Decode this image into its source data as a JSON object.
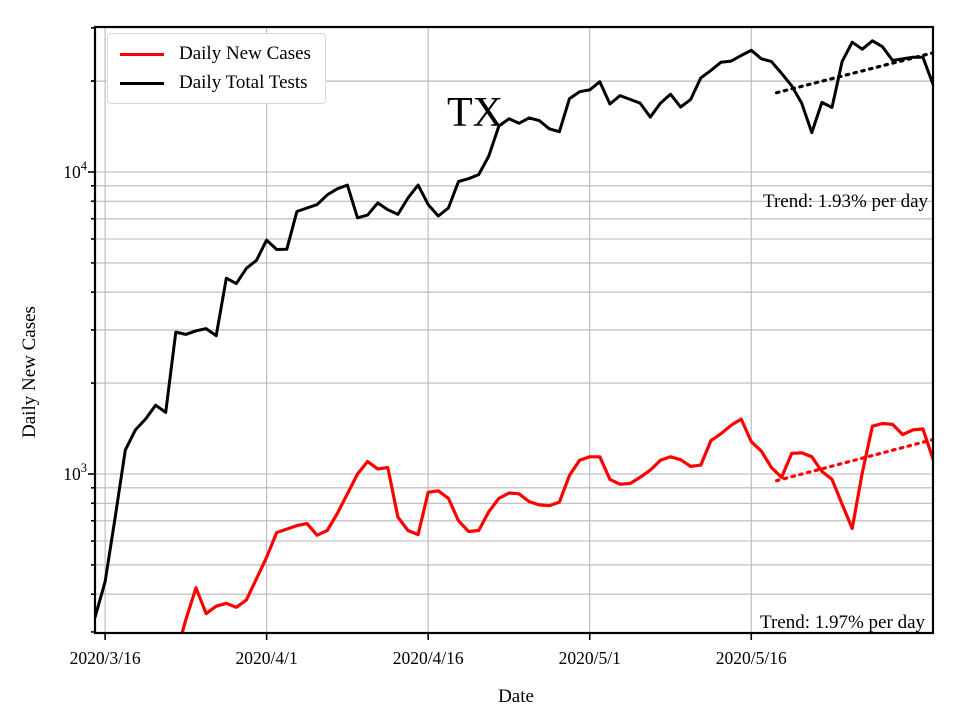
{
  "figure": {
    "background": "#ffffff"
  },
  "chart_data": {
    "type": "line",
    "title": "",
    "region_label": "TX",
    "xlabel": "Date",
    "ylabel": "Daily New Cases",
    "y_scale": "log",
    "ylim": [
      298,
      30000
    ],
    "grid": true,
    "grid_color": "#b9b9b9",
    "n_points": 84,
    "x_tick_indices": [
      1,
      17,
      33,
      49,
      65
    ],
    "x_tick_labels": [
      "2020/3/16",
      "2020/4/1",
      "2020/4/16",
      "2020/5/1",
      "2020/5/16"
    ],
    "y_major_ticks": [
      {
        "value": 1000,
        "base": "10",
        "exp": "3"
      },
      {
        "value": 10000,
        "base": "10",
        "exp": "4"
      }
    ],
    "series": [
      {
        "name": "Daily New Cases",
        "color": "#ff0000",
        "width": 3.2,
        "values": [
          null,
          null,
          null,
          null,
          null,
          null,
          null,
          null,
          250,
          330,
          420,
          345,
          365,
          373,
          362,
          383,
          450,
          530,
          640,
          657,
          675,
          685,
          627,
          650,
          740,
          860,
          1000,
          1100,
          1040,
          1050,
          720,
          650,
          630,
          870,
          880,
          830,
          700,
          645,
          650,
          750,
          830,
          865,
          860,
          810,
          790,
          785,
          807,
          990,
          1110,
          1140,
          1140,
          960,
          925,
          930,
          975,
          1030,
          1110,
          1140,
          1115,
          1060,
          1070,
          1290,
          1360,
          1450,
          1520,
          1280,
          1190,
          1050,
          975,
          1170,
          1175,
          1140,
          1020,
          960,
          795,
          660,
          1010,
          1440,
          1470,
          1460,
          1350,
          1400,
          1410,
          1120
        ]
      },
      {
        "name": "Daily Total Tests",
        "color": "#000000",
        "width": 3,
        "values": [
          335,
          440,
          720,
          1200,
          1400,
          1520,
          1690,
          1600,
          2950,
          2900,
          2980,
          3030,
          2870,
          4450,
          4270,
          4800,
          5100,
          5950,
          5540,
          5550,
          7400,
          7600,
          7800,
          8400,
          8800,
          9050,
          7050,
          7200,
          7900,
          7500,
          7240,
          8200,
          9050,
          7800,
          7150,
          7600,
          9300,
          9500,
          9800,
          11300,
          14200,
          15000,
          14500,
          15100,
          14800,
          13900,
          13600,
          17500,
          18450,
          18700,
          19900,
          16800,
          17900,
          17400,
          16900,
          15200,
          16900,
          18100,
          16400,
          17400,
          20500,
          21700,
          23100,
          23300,
          24300,
          25300,
          23700,
          23200,
          21200,
          19300,
          16900,
          13500,
          17000,
          16350,
          23200,
          26900,
          25500,
          27200,
          26000,
          23400,
          23700,
          24000,
          24000,
          19500
        ]
      }
    ],
    "trend_lines": [
      {
        "series": "Daily Total Tests",
        "color": "#000000",
        "start_index": 67.5,
        "end_index": 83,
        "start_value": 18300,
        "end_value": 24800,
        "label": "Trend: 1.93% per day"
      },
      {
        "series": "Daily New Cases",
        "color": "#ff0000",
        "start_index": 67.5,
        "end_index": 83,
        "start_value": 950,
        "end_value": 1300,
        "label": "Trend: 1.97% per day"
      }
    ],
    "legend": {
      "position": "upper-left",
      "entries": [
        "Daily New Cases",
        "Daily Total Tests"
      ]
    }
  }
}
